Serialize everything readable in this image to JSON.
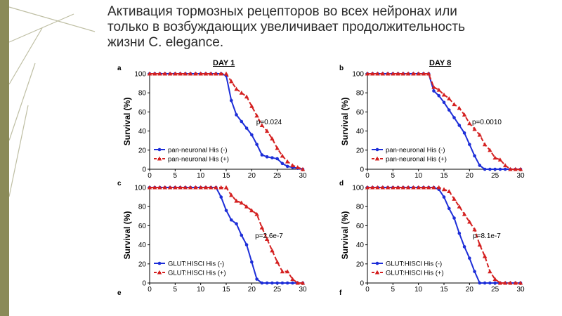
{
  "slide": {
    "title_lines": [
      "Активация тормозных рецепторов во всех нейронах или",
      "только в возбуждающих увеличивает продолжительность",
      "жизни C. elegance."
    ]
  },
  "figure": {
    "day_labels": [
      "DAY 1",
      "DAY 8"
    ],
    "panel_letters": [
      "a",
      "b",
      "c",
      "d",
      "e",
      "f"
    ]
  },
  "colors": {
    "minus": "#1d2ed8",
    "plus": "#d42020",
    "accent_bar": "#8a8a58",
    "title_text": "#2b2b2b"
  },
  "chart_data": [
    {
      "type": "line",
      "panel": "a",
      "xlabel": "",
      "ylabel": "Survival (%)",
      "xlim": [
        0,
        30
      ],
      "ylim": [
        0,
        100
      ],
      "xticks": [
        0,
        5,
        10,
        15,
        20,
        25,
        30
      ],
      "yticks": [
        0,
        20,
        40,
        60,
        80,
        100
      ],
      "annotation": "p=0.024",
      "series": [
        {
          "name": "pan-neuronal His (-)",
          "color": "minus",
          "marker": "circle",
          "dashed": false,
          "x": [
            0,
            1,
            2,
            3,
            4,
            5,
            6,
            7,
            8,
            9,
            10,
            11,
            12,
            13,
            14,
            15,
            16,
            17,
            18,
            19,
            20,
            21,
            22,
            23,
            24,
            25,
            26,
            27,
            28,
            29,
            30
          ],
          "y": [
            100,
            100,
            100,
            100,
            100,
            100,
            100,
            100,
            100,
            100,
            100,
            100,
            100,
            100,
            100,
            98,
            72,
            57,
            50,
            43,
            36,
            26,
            15,
            13,
            12,
            11,
            6,
            3,
            2,
            1,
            0
          ]
        },
        {
          "name": "pan-neuronal His (+)",
          "color": "plus",
          "marker": "triangle",
          "dashed": true,
          "x": [
            0,
            1,
            2,
            3,
            4,
            5,
            6,
            7,
            8,
            9,
            10,
            11,
            12,
            13,
            14,
            15,
            16,
            17,
            18,
            19,
            20,
            21,
            22,
            23,
            24,
            25,
            26,
            27,
            28,
            29,
            30
          ],
          "y": [
            100,
            100,
            100,
            100,
            100,
            100,
            100,
            100,
            100,
            100,
            100,
            100,
            100,
            100,
            100,
            100,
            92,
            84,
            80,
            76,
            66,
            56,
            46,
            40,
            32,
            22,
            14,
            8,
            4,
            2,
            0
          ]
        }
      ]
    },
    {
      "type": "line",
      "panel": "b",
      "xlabel": "",
      "ylabel": "Survival (%)",
      "xlim": [
        0,
        30
      ],
      "ylim": [
        0,
        100
      ],
      "xticks": [
        0,
        5,
        10,
        15,
        20,
        25,
        30
      ],
      "yticks": [
        0,
        20,
        40,
        60,
        80,
        100
      ],
      "annotation": "p=0.0010",
      "series": [
        {
          "name": "pan-neuronal His (-)",
          "color": "minus",
          "marker": "circle",
          "dashed": false,
          "x": [
            0,
            1,
            2,
            3,
            4,
            5,
            6,
            7,
            8,
            9,
            10,
            11,
            12,
            13,
            14,
            15,
            16,
            17,
            18,
            19,
            20,
            21,
            22,
            23,
            24,
            25,
            26,
            27,
            28,
            29,
            30
          ],
          "y": [
            100,
            100,
            100,
            100,
            100,
            100,
            100,
            100,
            100,
            100,
            100,
            100,
            100,
            82,
            77,
            70,
            62,
            54,
            46,
            38,
            26,
            14,
            4,
            0,
            0,
            0,
            0,
            0,
            0,
            0,
            0
          ]
        },
        {
          "name": "pan-neuronal His (+)",
          "color": "plus",
          "marker": "triangle",
          "dashed": true,
          "x": [
            0,
            1,
            2,
            3,
            4,
            5,
            6,
            7,
            8,
            9,
            10,
            11,
            12,
            13,
            14,
            15,
            16,
            17,
            18,
            19,
            20,
            21,
            22,
            23,
            24,
            25,
            26,
            27,
            28,
            29,
            30
          ],
          "y": [
            100,
            100,
            100,
            100,
            100,
            100,
            100,
            100,
            100,
            100,
            100,
            100,
            100,
            86,
            83,
            78,
            74,
            68,
            64,
            57,
            48,
            42,
            36,
            26,
            20,
            12,
            10,
            4,
            0,
            0,
            0
          ]
        }
      ]
    },
    {
      "type": "line",
      "panel": "c",
      "xlabel": "",
      "ylabel": "Survival (%)",
      "xlim": [
        0,
        30
      ],
      "ylim": [
        0,
        100
      ],
      "xticks": [
        0,
        5,
        10,
        15,
        20,
        25,
        30
      ],
      "yticks": [
        0,
        20,
        40,
        60,
        80,
        100
      ],
      "annotation": "p=2.6e-7",
      "series": [
        {
          "name": "GLUT:HISCl His (-)",
          "color": "minus",
          "marker": "circle",
          "dashed": false,
          "x": [
            0,
            1,
            2,
            3,
            4,
            5,
            6,
            7,
            8,
            9,
            10,
            11,
            12,
            13,
            14,
            15,
            16,
            17,
            18,
            19,
            20,
            21,
            22,
            23,
            24,
            25,
            26,
            27,
            28,
            29,
            30
          ],
          "y": [
            100,
            100,
            100,
            100,
            100,
            100,
            100,
            100,
            100,
            100,
            100,
            100,
            100,
            100,
            90,
            76,
            66,
            62,
            50,
            40,
            22,
            4,
            0,
            0,
            0,
            0,
            0,
            0,
            0,
            0,
            0
          ]
        },
        {
          "name": "GLUT:HISCl His (+)",
          "color": "plus",
          "marker": "triangle",
          "dashed": true,
          "x": [
            0,
            1,
            2,
            3,
            4,
            5,
            6,
            7,
            8,
            9,
            10,
            11,
            12,
            13,
            14,
            15,
            16,
            17,
            18,
            19,
            20,
            21,
            22,
            23,
            24,
            25,
            26,
            27,
            28,
            29,
            30
          ],
          "y": [
            100,
            100,
            100,
            100,
            100,
            100,
            100,
            100,
            100,
            100,
            100,
            100,
            100,
            100,
            100,
            100,
            92,
            86,
            84,
            80,
            76,
            72,
            58,
            46,
            34,
            22,
            12,
            12,
            4,
            0,
            0
          ]
        }
      ]
    },
    {
      "type": "line",
      "panel": "d",
      "xlabel": "",
      "ylabel": "Survival (%)",
      "xlim": [
        0,
        30
      ],
      "ylim": [
        0,
        100
      ],
      "xticks": [
        0,
        5,
        10,
        15,
        20,
        25,
        30
      ],
      "yticks": [
        0,
        20,
        40,
        60,
        80,
        100
      ],
      "annotation": "p=8.1e-7",
      "series": [
        {
          "name": "GLUT:HISCl His (-)",
          "color": "minus",
          "marker": "circle",
          "dashed": false,
          "x": [
            0,
            1,
            2,
            3,
            4,
            5,
            6,
            7,
            8,
            9,
            10,
            11,
            12,
            13,
            14,
            15,
            16,
            17,
            18,
            19,
            20,
            21,
            22,
            23,
            24,
            25,
            26,
            27,
            28,
            29,
            30
          ],
          "y": [
            100,
            100,
            100,
            100,
            100,
            100,
            100,
            100,
            100,
            100,
            100,
            100,
            100,
            100,
            98,
            90,
            78,
            68,
            52,
            38,
            26,
            12,
            0,
            0,
            0,
            0,
            0,
            0,
            0,
            0,
            0
          ]
        },
        {
          "name": "GLUT:HISCl His (+)",
          "color": "plus",
          "marker": "triangle",
          "dashed": true,
          "x": [
            0,
            1,
            2,
            3,
            4,
            5,
            6,
            7,
            8,
            9,
            10,
            11,
            12,
            13,
            14,
            15,
            16,
            17,
            18,
            19,
            20,
            21,
            22,
            23,
            24,
            25,
            26,
            27,
            28,
            29,
            30
          ],
          "y": [
            100,
            100,
            100,
            100,
            100,
            100,
            100,
            100,
            100,
            100,
            100,
            100,
            100,
            100,
            100,
            98,
            96,
            88,
            80,
            72,
            64,
            56,
            40,
            28,
            12,
            4,
            0,
            0,
            0,
            0,
            0
          ]
        }
      ]
    }
  ]
}
